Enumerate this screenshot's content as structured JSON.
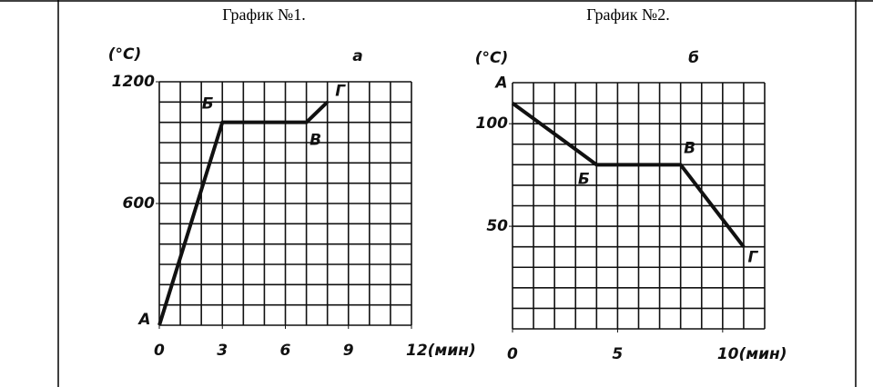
{
  "chart_data": [
    {
      "type": "line",
      "title": "График №1.",
      "ylabel": "(°C)",
      "panel_label": "а",
      "x": [
        0,
        3,
        7,
        8
      ],
      "values": [
        0,
        1000,
        1000,
        1100
      ],
      "point_labels": [
        "А",
        "Б",
        "В",
        "Г"
      ],
      "color": "#111111",
      "xlim": [
        0,
        12
      ],
      "ylim": [
        0,
        1200
      ],
      "xticks": [
        0,
        3,
        6,
        9,
        {
          "value": 12,
          "label": "12(мин)"
        }
      ],
      "yticks": [
        600,
        1200
      ],
      "grid": true,
      "minor_grid": {
        "x": 1,
        "y": 100
      }
    },
    {
      "type": "line",
      "title": "График №2.",
      "ylabel": "(°C)",
      "panel_label": "б",
      "x": [
        0,
        4,
        8,
        11
      ],
      "values": [
        110,
        80,
        80,
        40
      ],
      "point_labels": [
        "А",
        "Б",
        "В",
        "Г"
      ],
      "color": "#111111",
      "xlim": [
        0,
        12
      ],
      "ylim": [
        0,
        120
      ],
      "xticks": [
        0,
        5,
        {
          "value": 10,
          "label": "10(мин)"
        }
      ],
      "yticks": [
        50,
        100
      ],
      "grid": true,
      "minor_grid": {
        "x": 1,
        "y": 10
      }
    }
  ]
}
